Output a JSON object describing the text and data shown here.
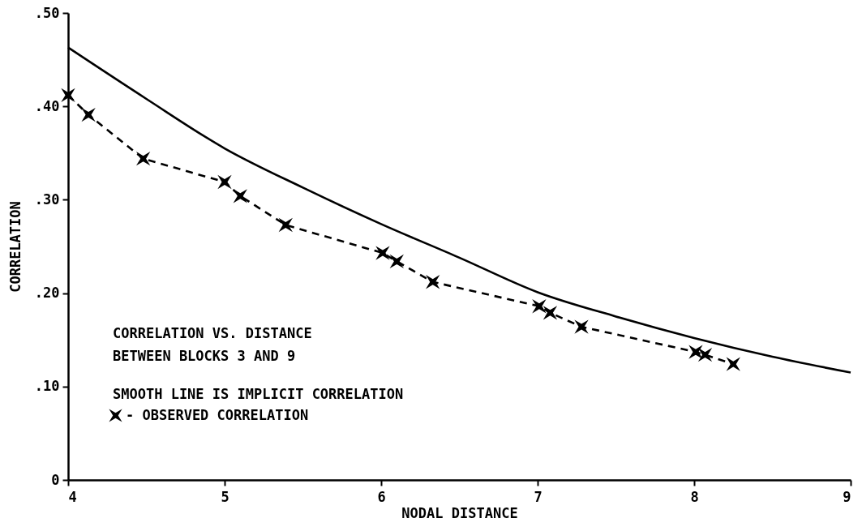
{
  "chart_data": {
    "type": "line",
    "xlabel": "NODAL DISTANCE",
    "ylabel": "CORRELATION",
    "xlim": [
      4,
      9
    ],
    "ylim": [
      0,
      0.5
    ],
    "xticks": [
      4,
      5,
      6,
      7,
      8,
      9
    ],
    "yticks": [
      0,
      {
        "value": 0.1,
        "label": ".10"
      },
      {
        "value": 0.2,
        "label": ".20"
      },
      {
        "value": 0.3,
        "label": ".30"
      },
      {
        "value": 0.4,
        "label": ".40"
      },
      {
        "value": 0.5,
        "label": ".50"
      }
    ],
    "grid": false,
    "legend": "bottom left",
    "annotations": [
      "CORRELATION VS. DISTANCE",
      "BETWEEN BLOCKS   3 AND   9",
      "SMOOTH LINE IS IMPLICIT CORRELATION"
    ],
    "series": [
      {
        "color": "#000000",
        "line_style": "solid",
        "marker": "none",
        "x": [
          4,
          4.5,
          5,
          5.5,
          6,
          6.5,
          7,
          7.5,
          8,
          8.5,
          9
        ],
        "values": [
          0.463,
          0.408,
          0.355,
          0.313,
          0.274,
          0.238,
          0.201,
          0.175,
          0.152,
          0.132,
          0.115
        ]
      },
      {
        "name": "- OBSERVED CORRELATION",
        "color": "#000000",
        "line_style": "dashed",
        "marker": "cross",
        "x": [
          4.0,
          4.13,
          4.48,
          5.0,
          5.1,
          5.39,
          6.01,
          6.1,
          6.33,
          7.01,
          7.08,
          7.28,
          8.01,
          8.07,
          8.25
        ],
        "values": [
          0.412,
          0.391,
          0.344,
          0.319,
          0.304,
          0.273,
          0.243,
          0.234,
          0.212,
          0.186,
          0.179,
          0.164,
          0.137,
          0.134,
          0.124
        ]
      }
    ]
  }
}
